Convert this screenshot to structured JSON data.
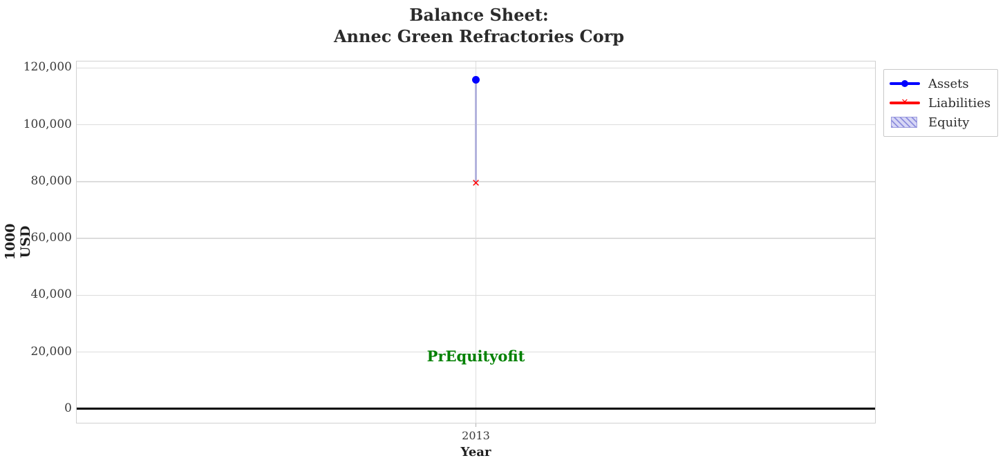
{
  "title": {
    "line1": "Balance Sheet:",
    "line2": "Annec Green Refractories Corp"
  },
  "axes": {
    "ylabel": "1000 USD",
    "xlabel": "Year",
    "x_tick": "2013"
  },
  "legend": {
    "items": [
      {
        "label": "Assets",
        "marker": "circle-line",
        "color": "#0000ff"
      },
      {
        "label": "Liabilities",
        "marker": "x-line",
        "color": "#ff0000"
      },
      {
        "label": "Equity",
        "marker": "hatched-patch",
        "color": "#b3b3dd"
      }
    ]
  },
  "icons": {
    "x_marker": "✕"
  },
  "chart_data": {
    "type": "scatter",
    "title": "Balance Sheet: Annec Green Refractories Corp",
    "xlabel": "Year",
    "ylabel": "1000 USD",
    "x": [
      2013
    ],
    "series": [
      {
        "name": "Assets",
        "marker": "circle",
        "color": "#0000ff",
        "values": [
          115800
        ]
      },
      {
        "name": "Liabilities",
        "marker": "x",
        "color": "#ff0000",
        "values": [
          79500
        ]
      },
      {
        "name": "Equity",
        "marker": "hatched-band-between-liabilities-and-assets",
        "color": "#b3b3dd",
        "values": [
          36300
        ]
      }
    ],
    "ylim": [
      -5400,
      122300
    ],
    "y_ticks": [
      {
        "v": 0,
        "label": "0"
      },
      {
        "v": 20000,
        "label": "20,000"
      },
      {
        "v": 40000,
        "label": "40,000"
      },
      {
        "v": 60000,
        "label": "60,000"
      },
      {
        "v": 80000,
        "label": "80,000"
      },
      {
        "v": 100000,
        "label": "100,000"
      },
      {
        "v": 120000,
        "label": "120,000"
      }
    ],
    "x_ticks": [
      {
        "v": 2013,
        "label": "2013"
      }
    ],
    "grid": true,
    "zero_line": true,
    "legend_position": "outside upper right",
    "annotation": {
      "text": "PrEquityofit",
      "x": 2013,
      "y": 18500,
      "color": "#008000"
    }
  }
}
